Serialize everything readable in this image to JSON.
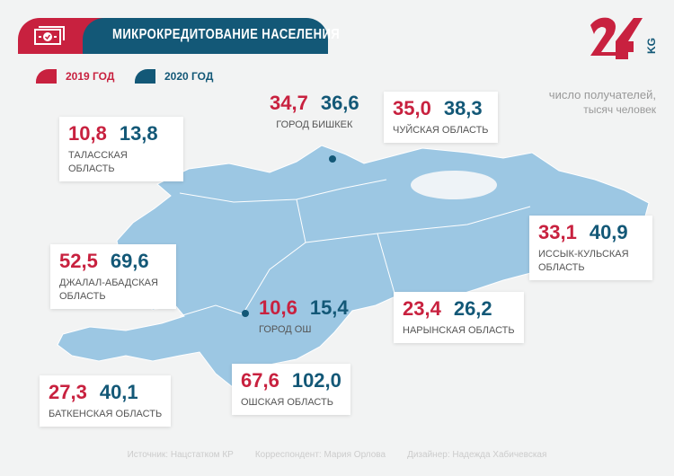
{
  "header": {
    "title": "МИКРОКРЕДИТОВАНИЕ НАСЕЛЕНИЯ",
    "icon": "money-check-icon"
  },
  "legend": [
    {
      "label": "2019 ГОД",
      "color": "#c8213f"
    },
    {
      "label": "2020 ГОД",
      "color": "#135877"
    }
  ],
  "logo": {
    "text": "24",
    "suffix": "KG"
  },
  "unit": {
    "line1": "число получателей,",
    "line2": "тысяч человек"
  },
  "colors": {
    "map": "#9cc7e3",
    "red": "#c8213f",
    "blue": "#135877"
  },
  "regions": [
    {
      "name": "ГОРОД БИШКЕК",
      "v2019": "34,7",
      "v2020": "36,6"
    },
    {
      "name": "ЧУЙСКАЯ ОБЛАСТЬ",
      "v2019": "35,0",
      "v2020": "38,3"
    },
    {
      "name": "ТАЛАССКАЯ ОБЛАСТЬ",
      "v2019": "10,8",
      "v2020": "13,8"
    },
    {
      "name": "ИССЫК-КУЛЬСКАЯ ОБЛАСТЬ",
      "v2019": "33,1",
      "v2020": "40,9"
    },
    {
      "name": "ДЖАЛАЛ-АБАДСКАЯ ОБЛАСТЬ",
      "v2019": "52,5",
      "v2020": "69,6"
    },
    {
      "name": "ГОРОД ОШ",
      "v2019": "10,6",
      "v2020": "15,4"
    },
    {
      "name": "НАРЫНСКАЯ ОБЛАСТЬ",
      "v2019": "23,4",
      "v2020": "26,2"
    },
    {
      "name": "БАТКЕНСКАЯ ОБЛАСТЬ",
      "v2019": "27,3",
      "v2020": "40,1"
    },
    {
      "name": "ОШСКАЯ ОБЛАСТЬ",
      "v2019": "67,6",
      "v2020": "102,0"
    }
  ],
  "footer": {
    "source": "Источник: Нацстатком КР",
    "correspondent": "Корреспондент: Мария Орлова",
    "designer": "Дизайнер: Надежда Хабичевская"
  }
}
